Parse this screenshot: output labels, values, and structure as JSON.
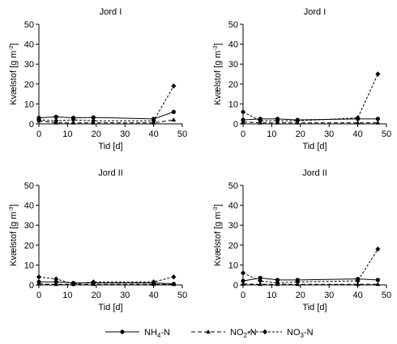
{
  "chart_data": [
    {
      "type": "line",
      "title": "Jord I",
      "xlabel": "Tid [d]",
      "ylabel": "Kvælstof [g m",
      "ylabel_sup": "-3",
      "ylabel_end": "]",
      "xlim": [
        0,
        50
      ],
      "ylim": [
        0,
        50
      ],
      "xticks": [
        "0",
        "10",
        "20",
        "30",
        "40",
        "50"
      ],
      "yticks": [
        "0",
        "10",
        "20",
        "30",
        "40",
        "50"
      ],
      "grid": false,
      "series": [
        {
          "name": "NH4-N",
          "x": [
            0,
            6,
            12,
            19,
            40,
            47
          ],
          "y": [
            3,
            3.5,
            3,
            3.2,
            2.5,
            6
          ]
        },
        {
          "name": "NO2-N",
          "x": [
            0,
            6,
            12,
            19,
            40,
            47
          ],
          "y": [
            1.5,
            0.5,
            0.5,
            0.5,
            0.5,
            2
          ]
        },
        {
          "name": "NO3-N",
          "x": [
            0,
            6,
            12,
            19,
            40,
            47
          ],
          "y": [
            2,
            1.5,
            2,
            1.5,
            1.5,
            19
          ]
        }
      ]
    },
    {
      "type": "line",
      "title": "Jord I",
      "xlabel": "Tid [d]",
      "ylabel": "Kvælstof [g m",
      "ylabel_sup": "-3",
      "ylabel_end": "]",
      "xlim": [
        0,
        50
      ],
      "ylim": [
        0,
        50
      ],
      "xticks": [
        "0",
        "10",
        "20",
        "30",
        "40",
        "50"
      ],
      "yticks": [
        "0",
        "10",
        "20",
        "30",
        "40",
        "50"
      ],
      "grid": false,
      "series": [
        {
          "name": "NH4-N",
          "x": [
            0,
            6,
            12,
            19,
            40,
            47
          ],
          "y": [
            2,
            2.5,
            2.5,
            2,
            2.5,
            2.5
          ]
        },
        {
          "name": "NO2-N",
          "x": [
            0,
            6,
            12,
            19,
            40,
            47
          ],
          "y": [
            1,
            0.5,
            0.5,
            0.5,
            0.5,
            0.5
          ]
        },
        {
          "name": "NO3-N",
          "x": [
            0,
            6,
            12,
            19,
            40,
            47
          ],
          "y": [
            6,
            1.5,
            1.5,
            1.5,
            3,
            25
          ]
        }
      ]
    },
    {
      "type": "line",
      "title": "Jord II",
      "xlabel": "Tid [d]",
      "ylabel": "Kvælstof [g m",
      "ylabel_sup": "-3",
      "ylabel_end": "]",
      "xlim": [
        0,
        50
      ],
      "ylim": [
        0,
        50
      ],
      "xticks": [
        "0",
        "10",
        "20",
        "30",
        "40",
        "50"
      ],
      "yticks": [
        "0",
        "10",
        "20",
        "30",
        "40",
        "50"
      ],
      "grid": false,
      "series": [
        {
          "name": "NH4-N",
          "x": [
            0,
            6,
            12,
            19,
            40,
            47
          ],
          "y": [
            1.5,
            1.5,
            1,
            1,
            1,
            0.5
          ]
        },
        {
          "name": "NO2-N",
          "x": [
            0,
            6,
            12,
            19,
            40,
            47
          ],
          "y": [
            0.5,
            0.3,
            0.3,
            0.3,
            0.3,
            0.3
          ]
        },
        {
          "name": "NO3-N",
          "x": [
            0,
            6,
            12,
            19,
            40,
            47
          ],
          "y": [
            4,
            3,
            0.5,
            1.5,
            1.5,
            4
          ]
        }
      ]
    },
    {
      "type": "line",
      "title": "Jord II",
      "xlabel": "Tid [d]",
      "ylabel": "Kvælstof [g m",
      "ylabel_sup": "-3",
      "ylabel_end": "]",
      "xlim": [
        0,
        50
      ],
      "ylim": [
        0,
        50
      ],
      "xticks": [
        "0",
        "10",
        "20",
        "30",
        "40",
        "50"
      ],
      "yticks": [
        "0",
        "10",
        "20",
        "30",
        "40",
        "50"
      ],
      "grid": false,
      "series": [
        {
          "name": "NH4-N",
          "x": [
            0,
            6,
            12,
            19,
            40,
            47
          ],
          "y": [
            2,
            3.5,
            2.5,
            2.5,
            3,
            2.5
          ]
        },
        {
          "name": "NO2-N",
          "x": [
            0,
            6,
            12,
            19,
            40,
            47
          ],
          "y": [
            0.5,
            0.3,
            0.3,
            0.3,
            0.3,
            0.3
          ]
        },
        {
          "name": "NO3-N",
          "x": [
            0,
            6,
            12,
            19,
            40,
            47
          ],
          "y": [
            6,
            2,
            1,
            1.5,
            2,
            18
          ]
        }
      ]
    }
  ],
  "legend": {
    "placement": "bottom",
    "items": [
      {
        "key": "NH4-N",
        "prefix": "NH",
        "sub": "4",
        "suffix": "-N",
        "dash": "solid",
        "marker": "circle"
      },
      {
        "key": "NO2-N",
        "prefix": "NO",
        "sub": "2",
        "suffix": "-N",
        "dash": "dashed",
        "marker": "triangle"
      },
      {
        "key": "NO3-N",
        "prefix": "NO",
        "sub": "3",
        "suffix": "-N",
        "dash": "dashed",
        "marker": "diamond"
      }
    ]
  },
  "colors": {
    "ink": "#000000",
    "background": "#ffffff"
  }
}
